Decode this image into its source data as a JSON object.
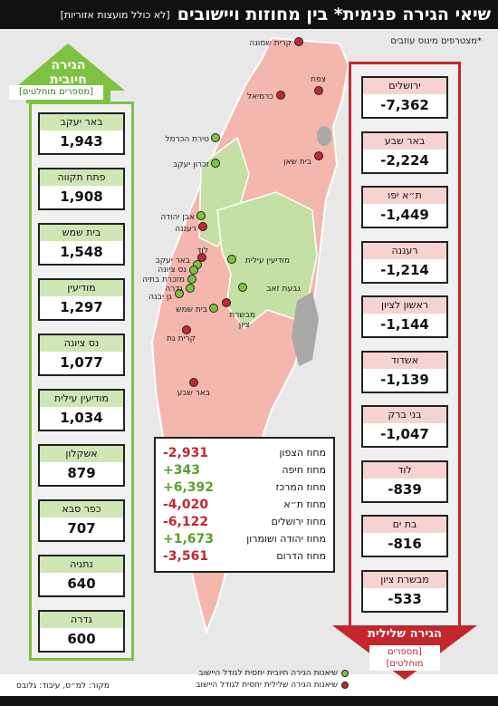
{
  "title": {
    "main": "שיאי הגירה פנימית* בין מחוזות ויישובים",
    "sub": "[לא כולל מועצות אזוריות]"
  },
  "footnote": "*מצטרפים מינוס עוזבים",
  "positive": {
    "title_line1": "הגירה",
    "title_line2": "חיובית",
    "subtitle": "[מספרים מוחלטים]",
    "color": "#7dc241",
    "items": [
      {
        "name": "באר יעקב",
        "value": "1,943"
      },
      {
        "name": "פתח תקווה",
        "value": "1,908"
      },
      {
        "name": "בית שמש",
        "value": "1,548"
      },
      {
        "name": "מודיעין",
        "value": "1,297"
      },
      {
        "name": "נס ציונה",
        "value": "1,077"
      },
      {
        "name": "מודיעין עילית",
        "value": "1,034"
      },
      {
        "name": "אשקלון",
        "value": "879"
      },
      {
        "name": "כפר סבא",
        "value": "707"
      },
      {
        "name": "נתניה",
        "value": "640"
      },
      {
        "name": "גדרה",
        "value": "600"
      }
    ]
  },
  "negative": {
    "title": "הגירה שלילית",
    "subtitle_line1": "[מספרים",
    "subtitle_line2": "מוחלטים]",
    "color": "#c4262e",
    "items": [
      {
        "name": "ירושלים",
        "value": "-7,362"
      },
      {
        "name": "באר שבע",
        "value": "-2,224"
      },
      {
        "name": "ת״א יפו",
        "value": "-1,449"
      },
      {
        "name": "רעננה",
        "value": "-1,214"
      },
      {
        "name": "ראשון לציון",
        "value": "-1,144"
      },
      {
        "name": "אשדוד",
        "value": "-1,139"
      },
      {
        "name": "בני ברק",
        "value": "-1,047"
      },
      {
        "name": "לוד",
        "value": "-839"
      },
      {
        "name": "בת ים",
        "value": "-816"
      },
      {
        "name": "מבשרת ציון",
        "value": "-533"
      }
    ]
  },
  "districts": [
    {
      "name": "מחוז הצפון",
      "value": "-2,931",
      "color": "#c4262e"
    },
    {
      "name": "מחוז חיפה",
      "value": "+343",
      "color": "#5aa02c"
    },
    {
      "name": "מחוז המרכז",
      "value": "+6,392",
      "color": "#5aa02c"
    },
    {
      "name": "מחוז ת״א",
      "value": "-4,020",
      "color": "#c4262e"
    },
    {
      "name": "מחוז ירושלים",
      "value": "-6,122",
      "color": "#c4262e"
    },
    {
      "name": "מחוז יהודה ושומרון",
      "value": "+1,673",
      "color": "#5aa02c"
    },
    {
      "name": "מחוז הדרום",
      "value": "-3,561",
      "color": "#c4262e"
    }
  ],
  "map_labels": {
    "kiryat_shmona": "קרית שמונה",
    "tzfat": "צפת",
    "karmiel": "כרמיאל",
    "tirat_carmel": "טירת הכרמל",
    "zichron": "זכרון יעקב",
    "beit_shean": "בית שאן",
    "even_yehuda": "אבן יהודה",
    "raanana": "רעננה",
    "lod": "לוד",
    "beer_yaakov": "באר יעקב",
    "nes_ziona": "נס ציונה",
    "mazkeret_batya": "מזכרת בתיה",
    "gedera": "גדרה",
    "gan_yavne": "גן יבנה",
    "modiin_illit": "מודיעין עילית",
    "givat_zeev": "גבעת זאב",
    "beit_shemesh": "בית שמש",
    "mevaseret_1": "מבשרת",
    "mevaseret_2": "ציון",
    "kiryat_gat": "קרית גת",
    "beer_sheva": "באר שבע"
  },
  "legend": {
    "positive": "שיאנות הגירה חיובית יחסית לגודל היישוב",
    "negative": "שיאנות הגירה שלילית יחסית לגודל היישוב",
    "positive_color": "#7dc241",
    "negative_color": "#c4262e"
  },
  "source": "מקור: למ״ס, עיבוד: גלובס"
}
